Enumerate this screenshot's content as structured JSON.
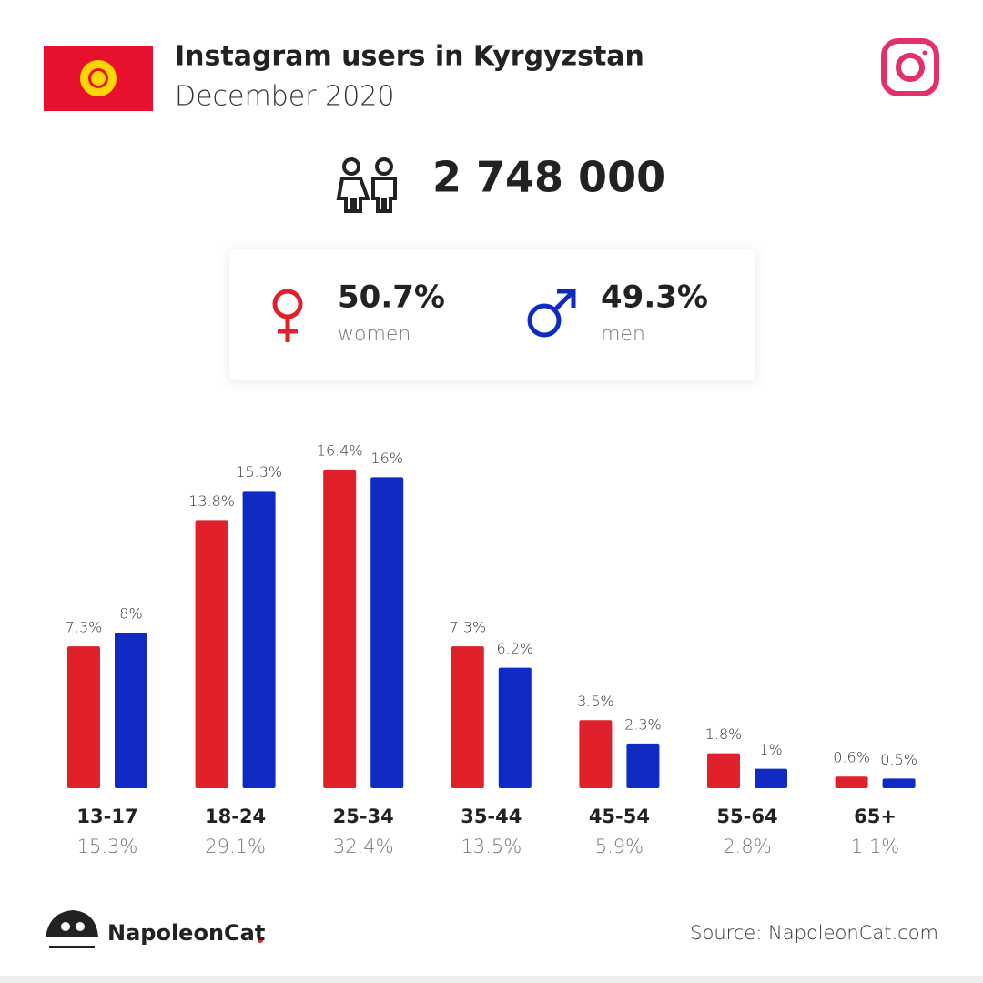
{
  "chart_data": {
    "type": "bar",
    "title": "Instagram users in Kyrgyzstan",
    "subtitle": "December 2020",
    "total_users": {
      "value": 2748000,
      "label": "2 748 000"
    },
    "categories": [
      "13-17",
      "18-24",
      "25-34",
      "35-44",
      "45-54",
      "55-64",
      "65+"
    ],
    "category_totals": [
      {
        "value": 15.3,
        "label": "15.3%"
      },
      {
        "value": 29.1,
        "label": "29.1%"
      },
      {
        "value": 32.4,
        "label": "32.4%"
      },
      {
        "value": 13.5,
        "label": "13.5%"
      },
      {
        "value": 5.9,
        "label": "5.9%"
      },
      {
        "value": 2.8,
        "label": "2.8%"
      },
      {
        "value": 1.1,
        "label": "1.1%"
      }
    ],
    "series": [
      {
        "name": "women",
        "color": "#e0202a",
        "share": {
          "value": 50.7,
          "label": "50.7%"
        },
        "values": [
          7.3,
          13.8,
          16.4,
          7.3,
          3.5,
          1.8,
          0.6
        ],
        "value_labels": [
          "7.3%",
          "13.8%",
          "16.4%",
          "7.3%",
          "3.5%",
          "1.8%",
          "0.6%"
        ]
      },
      {
        "name": "men",
        "color": "#0f2bc4",
        "share": {
          "value": 49.3,
          "label": "49.3%"
        },
        "values": [
          8,
          15.3,
          16,
          6.2,
          2.3,
          1,
          0.5
        ],
        "value_labels": [
          "8%",
          "15.3%",
          "16%",
          "6.2%",
          "2.3%",
          "1%",
          "0.5%"
        ]
      }
    ],
    "brand": "NapoleonCat",
    "source": "Source: NapoleonCat.com"
  }
}
